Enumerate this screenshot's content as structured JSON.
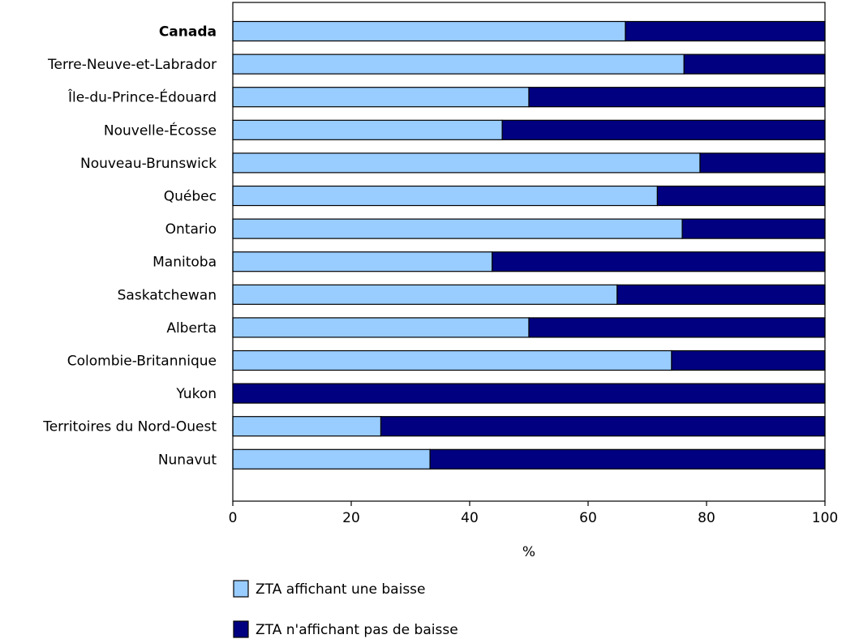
{
  "chart_data": {
    "type": "bar",
    "orientation": "horizontal",
    "stacked": true,
    "categories": [
      "Canada",
      "Terre-Neuve-et-Labrador",
      "Île-du-Prince-Édouard",
      "Nouvelle-Écosse",
      "Nouveau-Brunswick",
      "Québec",
      "Ontario",
      "Manitoba",
      "Saskatchewan",
      "Alberta",
      "Colombie-Britannique",
      "Yukon",
      "Territoires du Nord-Ouest",
      "Nunavut"
    ],
    "bold_categories": [
      "Canada"
    ],
    "series": [
      {
        "name": "ZTA affichant une baisse",
        "color": "#99ccff",
        "values": [
          66.3,
          76.2,
          50.0,
          45.5,
          78.9,
          71.7,
          75.9,
          43.8,
          64.9,
          50.0,
          74.1,
          0,
          25.0,
          33.3
        ]
      },
      {
        "name": "ZTA n'affichant pas de baisse",
        "color": "#000080",
        "values": [
          33.7,
          23.8,
          50.0,
          54.5,
          21.1,
          28.3,
          24.1,
          56.2,
          35.1,
          50.0,
          25.9,
          100,
          75.0,
          66.7
        ]
      }
    ],
    "xlabel": "%",
    "ylabel": "",
    "xlim": [
      0,
      100
    ],
    "xticks": [
      0,
      20,
      40,
      60,
      80,
      100
    ],
    "grid": false,
    "legend_position": "bottom"
  }
}
